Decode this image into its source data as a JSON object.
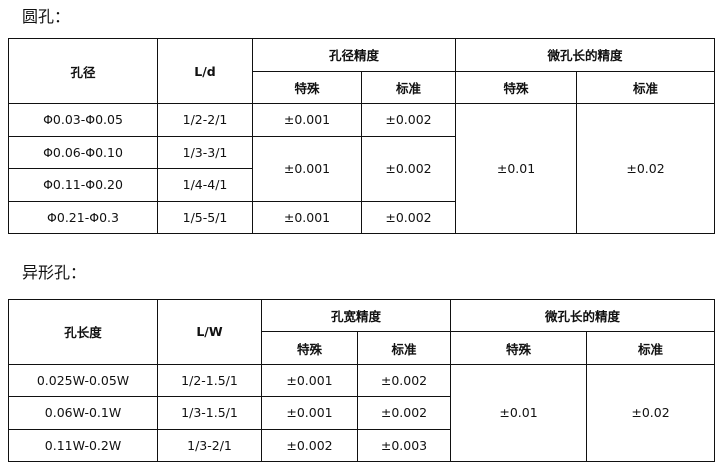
{
  "round_hole": {
    "title": "圆孔：",
    "headers": {
      "diameter": "孔径",
      "ratio": "L/d",
      "accuracy": "孔径精度",
      "length_accuracy": "微孔长的精度",
      "special": "特殊",
      "standard": "标准"
    },
    "rows": [
      {
        "diameter": "Φ0.03-Φ0.05",
        "ratio": "1/2-2/1",
        "special": "±0.001",
        "standard": "±0.002"
      },
      {
        "diameter": "Φ0.06-Φ0.10",
        "ratio": "1/3-3/1",
        "special": "±0.001",
        "standard": "±0.002"
      },
      {
        "diameter": "Φ0.11-Φ0.20",
        "ratio": "1/4-4/1"
      },
      {
        "diameter": "Φ0.21-Φ0.3",
        "ratio": "1/5-5/1",
        "special": "±0.001",
        "standard": "±0.002"
      }
    ],
    "length_special": "±0.01",
    "length_standard": "±0.02"
  },
  "shaped_hole": {
    "title": "异形孔：",
    "headers": {
      "length": "孔长度",
      "ratio": "L/W",
      "accuracy": "孔宽精度",
      "length_accuracy": "微孔长的精度",
      "special": "特殊",
      "standard": "标准"
    },
    "rows": [
      {
        "length": "0.025W-0.05W",
        "ratio": "1/2-1.5/1",
        "special": "±0.001",
        "standard": "±0.002"
      },
      {
        "length": "0.06W-0.1W",
        "ratio": "1/3-1.5/1",
        "special": "±0.001",
        "standard": "±0.002"
      },
      {
        "length": "0.11W-0.2W",
        "ratio": "1/3-2/1",
        "special": "±0.002",
        "standard": "±0.003"
      }
    ],
    "length_special": "±0.01",
    "length_standard": "±0.02"
  }
}
